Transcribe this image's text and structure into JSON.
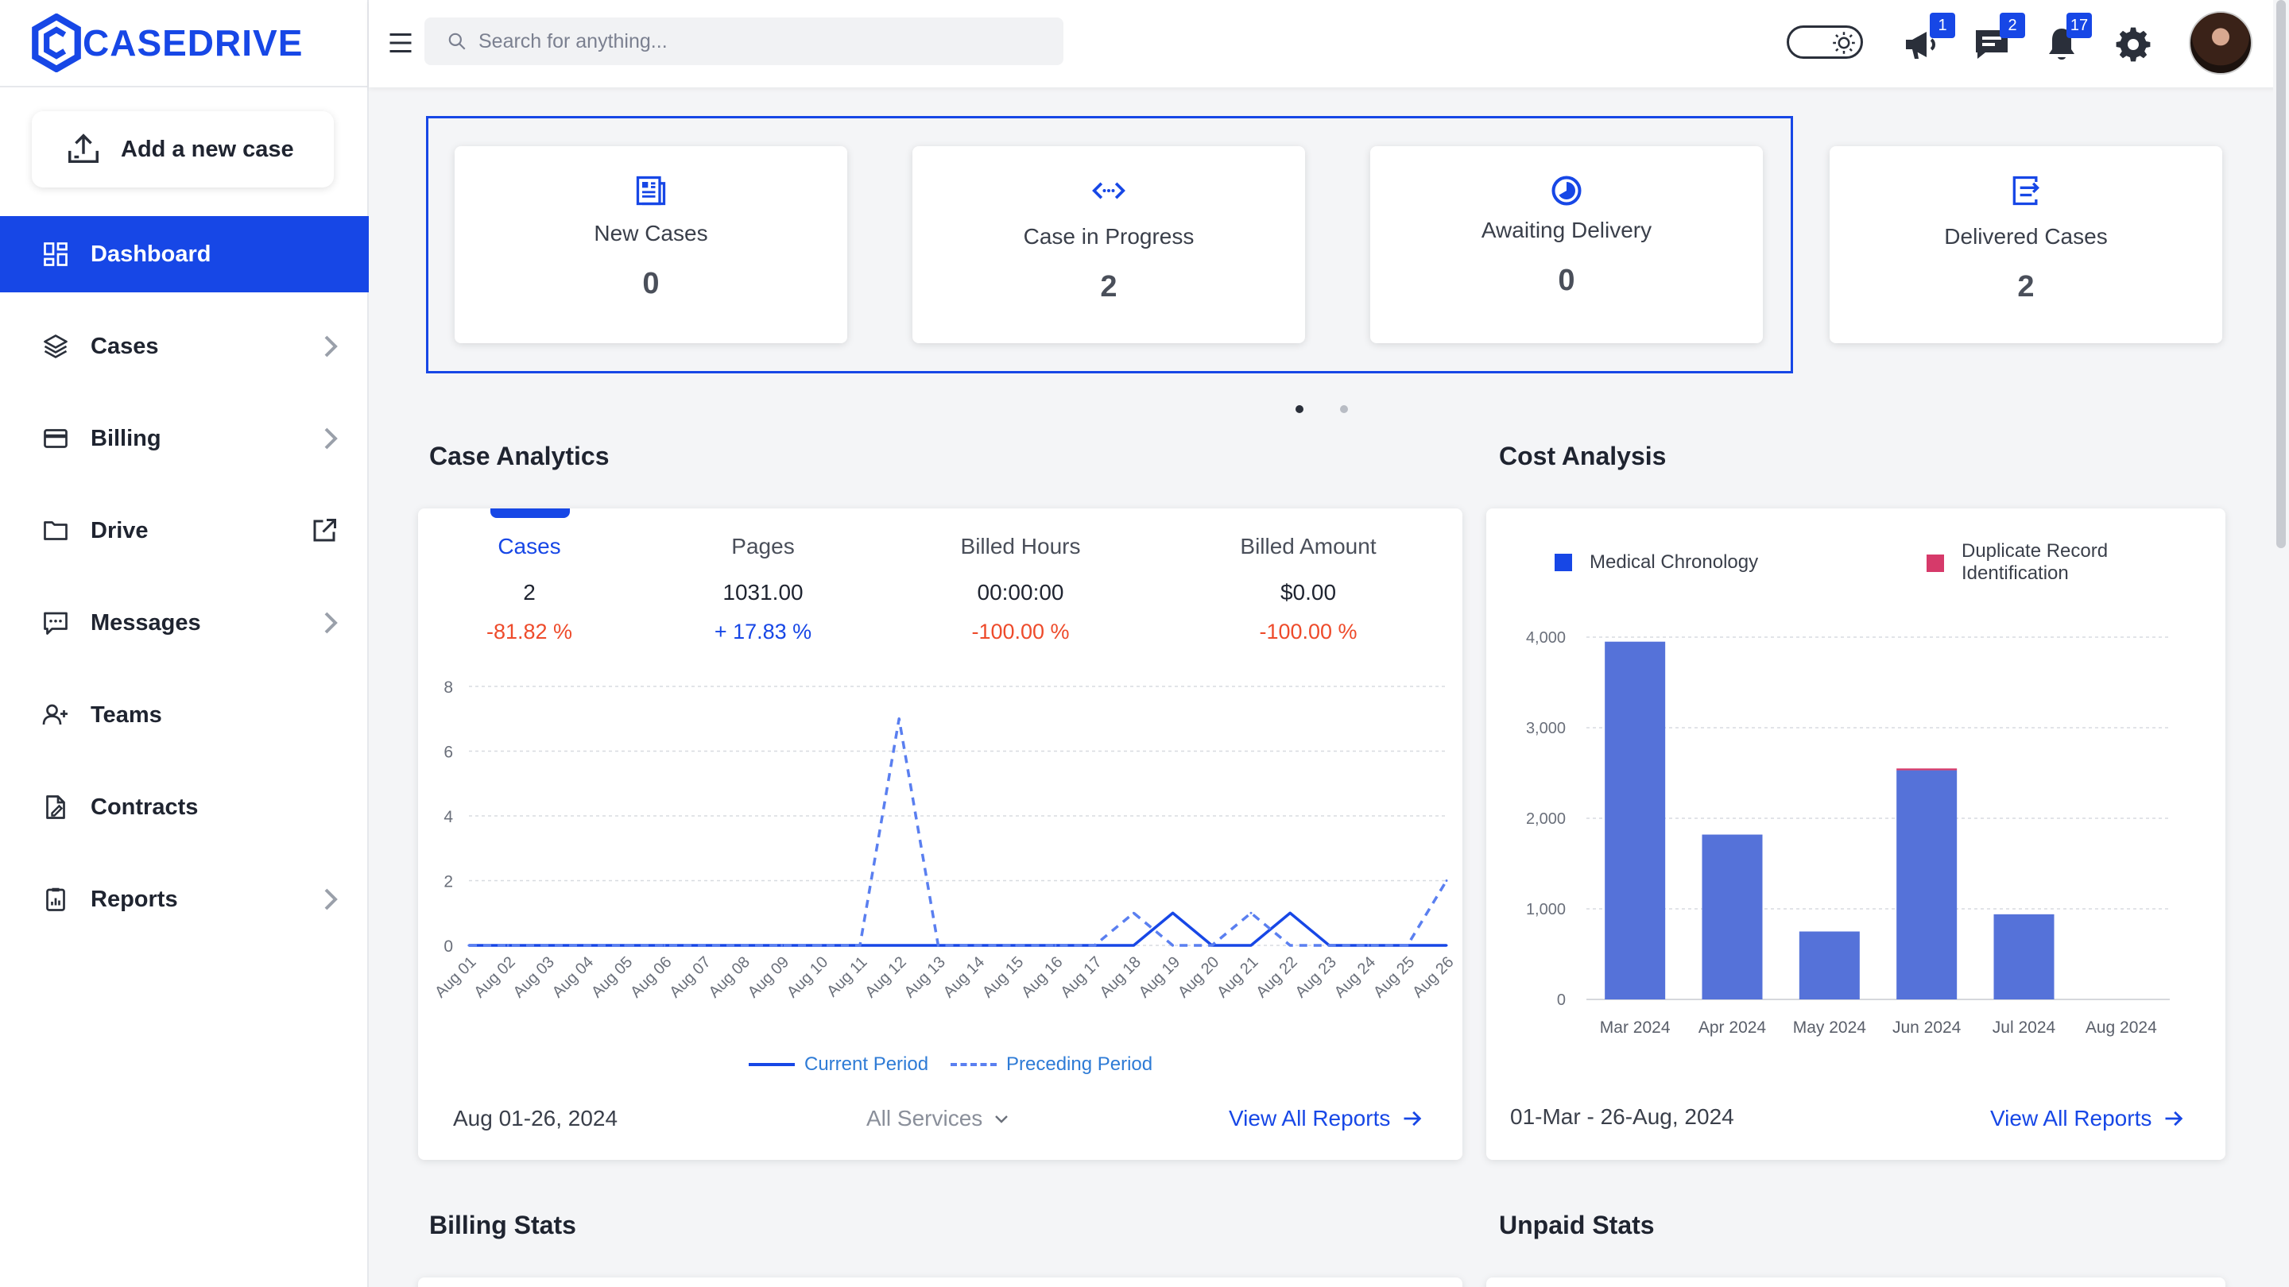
{
  "brand": {
    "name": "CASEDRIVE",
    "color": "#1747e6"
  },
  "sidebar": {
    "add_case_label": "Add a new case",
    "items": [
      {
        "label": "Dashboard",
        "icon": "dashboard-icon",
        "active": true
      },
      {
        "label": "Cases",
        "icon": "layers-icon",
        "has_chevron": true
      },
      {
        "label": "Billing",
        "icon": "credit-card-icon",
        "has_chevron": true
      },
      {
        "label": "Drive",
        "icon": "folder-icon",
        "external": true
      },
      {
        "label": "Messages",
        "icon": "message-icon",
        "has_chevron": true
      },
      {
        "label": "Teams",
        "icon": "user-add-icon"
      },
      {
        "label": "Contracts",
        "icon": "contract-icon"
      },
      {
        "label": "Reports",
        "icon": "clipboard-icon",
        "has_chevron": true
      }
    ]
  },
  "topbar": {
    "search_placeholder": "Search for anything...",
    "announcements_badge": "1",
    "messages_badge": "2",
    "notifications_badge": "17"
  },
  "stats": [
    {
      "title": "New Cases",
      "value": "0",
      "icon": "document-icon"
    },
    {
      "title": "Case in Progress",
      "value": "2",
      "icon": "code-arrows-icon"
    },
    {
      "title": "Awaiting Delivery",
      "value": "0",
      "icon": "clock-half-icon"
    },
    {
      "title": "Delivered Cases",
      "value": "2",
      "icon": "delivered-icon"
    }
  ],
  "case_analytics": {
    "title": "Case Analytics",
    "metrics": [
      {
        "label": "Cases",
        "value": "2",
        "change": "-81.82 %",
        "trend": "negative",
        "active": true
      },
      {
        "label": "Pages",
        "value": "1031.00",
        "change": "+ 17.83 %",
        "trend": "positive"
      },
      {
        "label": "Billed Hours",
        "value": "00:00:00",
        "change": "-100.00 %",
        "trend": "negative"
      },
      {
        "label": "Billed Amount",
        "value": "$0.00",
        "change": "-100.00 %",
        "trend": "negative"
      }
    ],
    "date_range": "Aug 01-26, 2024",
    "service_filter": "All Services",
    "view_all_label": "View All Reports"
  },
  "cost_analysis": {
    "title": "Cost Analysis",
    "date_range": "01-Mar - 26-Aug, 2024",
    "view_all_label": "View All Reports"
  },
  "billing_stats_title": "Billing Stats",
  "unpaid_stats_title": "Unpaid Stats",
  "chart_data": [
    {
      "type": "line",
      "x": [
        "Aug 01",
        "Aug 02",
        "Aug 03",
        "Aug 04",
        "Aug 05",
        "Aug 06",
        "Aug 07",
        "Aug 08",
        "Aug 09",
        "Aug 10",
        "Aug 11",
        "Aug 12",
        "Aug 13",
        "Aug 14",
        "Aug 15",
        "Aug 16",
        "Aug 17",
        "Aug 18",
        "Aug 19",
        "Aug 20",
        "Aug 21",
        "Aug 22",
        "Aug 23",
        "Aug 24",
        "Aug 25",
        "Aug 26"
      ],
      "series": [
        {
          "name": "Current Period",
          "style": "solid",
          "color": "#1747e6",
          "values": [
            0,
            0,
            0,
            0,
            0,
            0,
            0,
            0,
            0,
            0,
            0,
            0,
            0,
            0,
            0,
            0,
            0,
            0,
            1,
            0,
            0,
            1,
            0,
            0,
            0,
            0
          ]
        },
        {
          "name": "Preceding Period",
          "style": "dashed",
          "color": "#5a7ff0",
          "values": [
            0,
            0,
            0,
            0,
            0,
            0,
            0,
            0,
            0,
            0,
            0,
            7,
            0,
            0,
            0,
            0,
            0,
            1,
            0,
            0,
            1,
            0,
            0,
            0,
            0,
            2
          ]
        }
      ],
      "yticks": [
        0,
        2,
        4,
        6,
        8
      ],
      "ylim": [
        0,
        8
      ],
      "grid": true,
      "legend": "bottom"
    },
    {
      "type": "bar",
      "categories": [
        "Mar 2024",
        "Apr 2024",
        "May 2024",
        "Jun 2024",
        "Jul 2024",
        "Aug 2024"
      ],
      "series": [
        {
          "name": "Medical Chronology",
          "color": "#5572d9",
          "values": [
            3950,
            1820,
            750,
            2530,
            940,
            0
          ]
        },
        {
          "name": "Duplicate Record Identification",
          "color": "#d63a6a",
          "values": [
            0,
            0,
            0,
            20,
            0,
            0
          ]
        }
      ],
      "yticks": [
        "0",
        "1,000",
        "2,000",
        "3,000",
        "4,000"
      ],
      "ylim": [
        0,
        4000
      ],
      "grid": true,
      "legend": "top"
    }
  ]
}
